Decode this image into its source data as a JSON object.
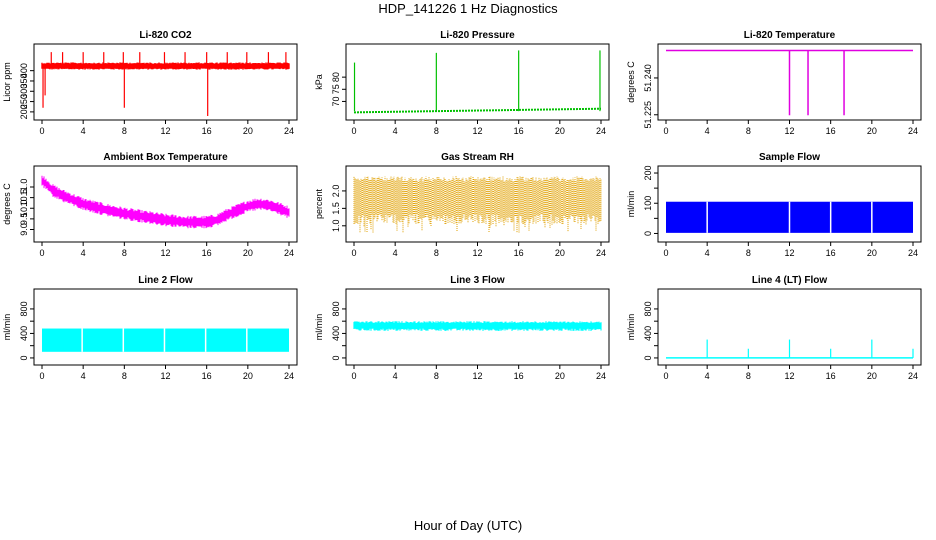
{
  "figure": {
    "title": "HDP_141226  1 Hz Diagnostics",
    "xlabel": "Hour of Day (UTC)"
  },
  "chart_data": [
    {
      "type": "line",
      "title": "Li-820 CO2",
      "ylabel": "Licor ppm",
      "color": "#ff0000",
      "xlim": [
        0,
        24
      ],
      "ylim": [
        180,
        510
      ],
      "xticks": [
        0,
        4,
        8,
        12,
        16,
        20,
        24
      ],
      "yticks": [
        200,
        250,
        300,
        350,
        400
      ],
      "band": {
        "low": 405,
        "high": 440
      },
      "spikes": [
        {
          "x": 0.1,
          "y": 220
        },
        {
          "x": 0.3,
          "y": 280
        },
        {
          "x": 0.9,
          "y": 490
        },
        {
          "x": 2.0,
          "y": 490
        },
        {
          "x": 4.0,
          "y": 490
        },
        {
          "x": 6.0,
          "y": 490
        },
        {
          "x": 7.9,
          "y": 490
        },
        {
          "x": 8.0,
          "y": 220
        },
        {
          "x": 9.5,
          "y": 490
        },
        {
          "x": 11.9,
          "y": 490
        },
        {
          "x": 13.9,
          "y": 490
        },
        {
          "x": 16.0,
          "y": 490
        },
        {
          "x": 16.1,
          "y": 180
        },
        {
          "x": 18.0,
          "y": 490
        },
        {
          "x": 19.9,
          "y": 490
        },
        {
          "x": 22.0,
          "y": 490
        },
        {
          "x": 23.7,
          "y": 490
        }
      ]
    },
    {
      "type": "line",
      "title": "Li-820 Pressure",
      "ylabel": "kPa",
      "color": "#00c000",
      "xlim": [
        0,
        24
      ],
      "ylim": [
        64,
        92
      ],
      "xticks": [
        0,
        4,
        8,
        12,
        16,
        20,
        24
      ],
      "yticks": [
        70,
        75,
        80
      ],
      "baseline": {
        "x": [
          0,
          24
        ],
        "y": [
          65.5,
          67
        ]
      },
      "spikes": [
        {
          "x": 0.05,
          "y": 86
        },
        {
          "x": 8.0,
          "y": 90
        },
        {
          "x": 16.0,
          "y": 91
        },
        {
          "x": 23.9,
          "y": 91
        }
      ]
    },
    {
      "type": "line",
      "title": "Li-820 Temperature",
      "ylabel": "degrees C",
      "color": "#e000e0",
      "xlim": [
        0,
        24
      ],
      "ylim": [
        51.2245,
        51.2522
      ],
      "xticks": [
        0,
        4,
        8,
        12,
        16,
        20,
        24
      ],
      "yticks": [
        51.225,
        51.24
      ],
      "ytick_labels": [
        "51.225",
        "51.240"
      ],
      "level": 51.2512,
      "dips": [
        {
          "x": 12.0,
          "y": 51.2248
        },
        {
          "x": 13.8,
          "y": 51.2248
        },
        {
          "x": 17.3,
          "y": 51.2248
        }
      ]
    },
    {
      "type": "line",
      "title": "Ambient Box Temperature",
      "ylabel": "degrees C",
      "color": "#ff00ff",
      "xlim": [
        0,
        24
      ],
      "ylim": [
        8.6,
        11.8
      ],
      "xticks": [
        0,
        4,
        8,
        12,
        16,
        20,
        24
      ],
      "yticks": [
        9.0,
        9.5,
        10.0,
        10.5,
        11.0
      ],
      "ytick_labels": [
        "9.0",
        "9.5",
        "10.0",
        "10.5",
        "11.0"
      ],
      "x": [
        0,
        0.5,
        1,
        2,
        3,
        4,
        6,
        8,
        10,
        12,
        14,
        16,
        17,
        18,
        19,
        20,
        21,
        22,
        23,
        24
      ],
      "y": [
        11.3,
        11.1,
        10.85,
        10.6,
        10.4,
        10.2,
        9.95,
        9.75,
        9.6,
        9.45,
        9.35,
        9.35,
        9.45,
        9.7,
        9.9,
        10.1,
        10.2,
        10.15,
        10.0,
        9.8
      ],
      "spread": 0.25
    },
    {
      "type": "line",
      "title": "Gas Stream RH",
      "ylabel": "percent",
      "color": "#e0a000",
      "xlim": [
        0,
        24
      ],
      "ylim": [
        0.65,
        2.6
      ],
      "xticks": [
        0,
        4,
        8,
        12,
        16,
        20,
        24
      ],
      "yticks": [
        1.0,
        1.5,
        2.0
      ],
      "ytick_labels": [
        "1.0",
        "1.5",
        "2.0"
      ],
      "band": {
        "low": 1.05,
        "high": 2.42
      },
      "min": 0.8
    },
    {
      "type": "line",
      "title": "Sample Flow",
      "ylabel": "ml/min",
      "color": "#0000ff",
      "xlim": [
        0,
        24
      ],
      "ylim": [
        -15,
        210
      ],
      "xticks": [
        0,
        4,
        8,
        12,
        16,
        20,
        24
      ],
      "yticks": [
        0,
        50,
        100,
        150,
        200
      ],
      "yticklabels_shown": [
        0,
        100,
        200
      ],
      "band": {
        "low": 2,
        "high": 105
      },
      "gaps": [
        4.0,
        12.0,
        16.0,
        20.0
      ]
    },
    {
      "type": "line",
      "title": "Line 2 Flow",
      "ylabel": "ml/min",
      "color": "#00ffff",
      "xlim": [
        0,
        24
      ],
      "ylim": [
        -50,
        1060
      ],
      "xticks": [
        0,
        4,
        8,
        12,
        16,
        20,
        24
      ],
      "yticks": [
        0,
        200,
        400,
        600,
        800
      ],
      "yticklabels_shown": [
        0,
        400,
        800
      ],
      "band": {
        "low": 100,
        "high": 480
      },
      "gaps": [
        3.9,
        7.9,
        11.9,
        15.9,
        19.9
      ]
    },
    {
      "type": "line",
      "title": "Line 3 Flow",
      "ylabel": "ml/min",
      "color": "#00ffff",
      "xlim": [
        0,
        24
      ],
      "ylim": [
        -50,
        1060
      ],
      "xticks": [
        0,
        4,
        8,
        12,
        16,
        20,
        24
      ],
      "yticks": [
        0,
        200,
        400,
        600,
        800
      ],
      "yticklabels_shown": [
        0,
        400,
        800
      ],
      "band": {
        "low": 440,
        "high": 600
      }
    },
    {
      "type": "line",
      "title": "Line 4 (LT) Flow",
      "ylabel": "ml/min",
      "color": "#00ffff",
      "xlim": [
        0,
        24
      ],
      "ylim": [
        -50,
        1060
      ],
      "xticks": [
        0,
        4,
        8,
        12,
        16,
        20,
        24
      ],
      "yticks": [
        0,
        200,
        400,
        600,
        800
      ],
      "yticklabels_shown": [
        0,
        400,
        800
      ],
      "level": 0,
      "spikes": [
        {
          "x": 4.0,
          "y": 300
        },
        {
          "x": 8.0,
          "y": 150
        },
        {
          "x": 12.0,
          "y": 300
        },
        {
          "x": 16.0,
          "y": 150
        },
        {
          "x": 20.0,
          "y": 300
        },
        {
          "x": 24.0,
          "y": 150
        }
      ]
    }
  ]
}
